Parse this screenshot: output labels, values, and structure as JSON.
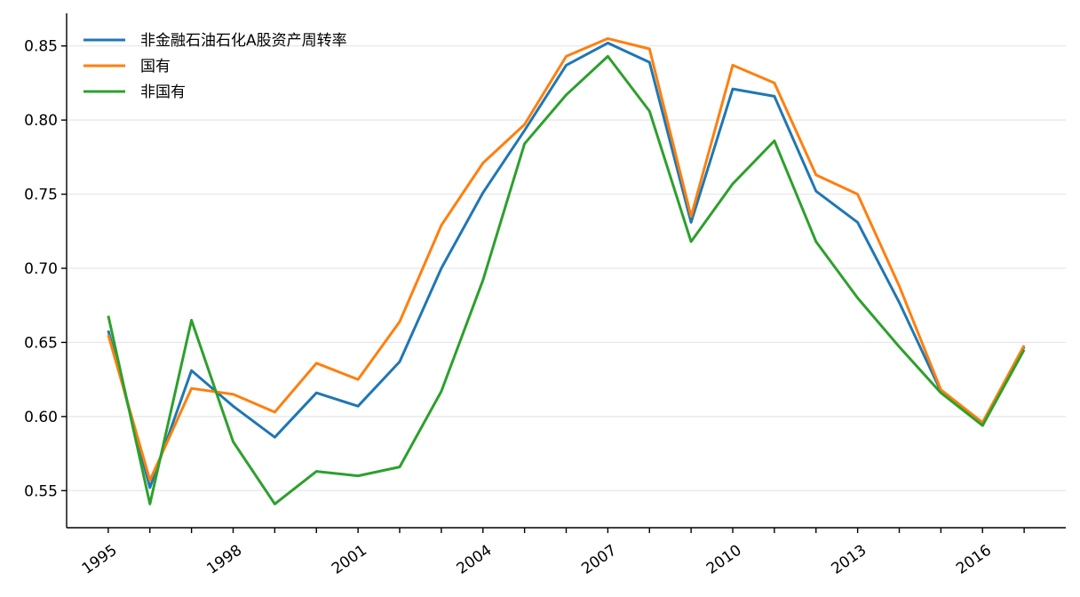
{
  "chart_data": {
    "type": "line",
    "title": "",
    "xlabel": "",
    "ylabel": "",
    "x": [
      1995,
      1996,
      1997,
      1998,
      1999,
      2000,
      2001,
      2002,
      2003,
      2004,
      2005,
      2006,
      2007,
      2008,
      2009,
      2010,
      2011,
      2012,
      2013,
      2014,
      2015,
      2016,
      2017
    ],
    "x_tick_labels": [
      "1995",
      "1998",
      "2001",
      "2004",
      "2007",
      "2010",
      "2013",
      "2016"
    ],
    "x_tick_label_values": [
      1995,
      1998,
      2001,
      2004,
      2007,
      2010,
      2013,
      2016
    ],
    "y_ticks": [
      0.55,
      0.6,
      0.65,
      0.7,
      0.75,
      0.8,
      0.85
    ],
    "y_tick_labels": [
      "0.55",
      "0.60",
      "0.65",
      "0.70",
      "0.75",
      "0.80",
      "0.85"
    ],
    "xlim": [
      1994,
      2018
    ],
    "ylim": [
      0.525,
      0.872
    ],
    "grid": "horizontal",
    "legend_position": "top-left",
    "series": [
      {
        "name": "非金融石油石化A股资产周转率",
        "color": "#1f77b4",
        "values": [
          0.658,
          0.552,
          0.631,
          0.607,
          0.586,
          0.616,
          0.607,
          0.637,
          0.7,
          0.751,
          0.793,
          0.837,
          0.852,
          0.839,
          0.731,
          0.821,
          0.816,
          0.752,
          0.731,
          0.677,
          0.617,
          0.594,
          0.647
        ]
      },
      {
        "name": "国有",
        "color": "#ff7f0e",
        "values": [
          0.655,
          0.557,
          0.619,
          0.615,
          0.603,
          0.636,
          0.625,
          0.664,
          0.729,
          0.771,
          0.797,
          0.843,
          0.855,
          0.848,
          0.735,
          0.837,
          0.825,
          0.763,
          0.75,
          0.688,
          0.618,
          0.596,
          0.648
        ]
      },
      {
        "name": "非国有",
        "color": "#2ca02c",
        "values": [
          0.668,
          0.541,
          0.665,
          0.583,
          0.541,
          0.563,
          0.56,
          0.566,
          0.617,
          0.692,
          0.784,
          0.817,
          0.843,
          0.806,
          0.718,
          0.757,
          0.786,
          0.718,
          0.68,
          0.647,
          0.616,
          0.594,
          0.645
        ]
      }
    ]
  }
}
